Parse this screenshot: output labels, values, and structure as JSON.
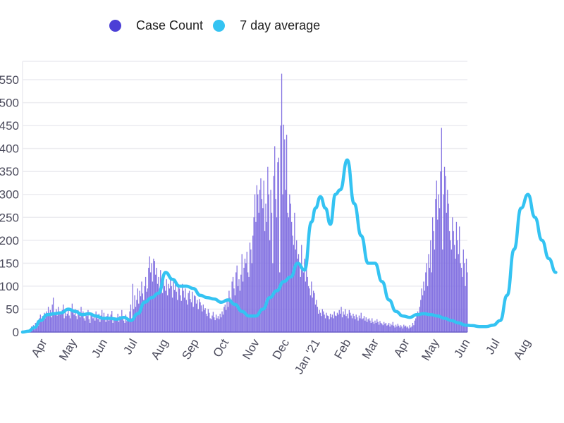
{
  "legend": {
    "items": [
      {
        "label": "Case Count",
        "color": "#4b3fd6"
      },
      {
        "label": "7 day average",
        "color": "#34c3f2"
      }
    ]
  },
  "colors": {
    "bar": "#7b68e0",
    "line": "#34c3f2",
    "grid": "#ececf0",
    "axis_text": "#4b4b5c"
  },
  "chart_data": {
    "type": "bar",
    "title": "",
    "xlabel": "",
    "ylabel": "",
    "ylim": [
      0,
      590
    ],
    "yticks": [
      0,
      50,
      100,
      150,
      200,
      250,
      300,
      350,
      400,
      450,
      500,
      550
    ],
    "grid": true,
    "legend_position": "top",
    "start_date": "2020-03-10",
    "x_tick_labels": [
      "Apr",
      "May",
      "Jun",
      "Jul",
      "Aug",
      "Sep",
      "Oct",
      "Nov",
      "Dec",
      "Jan '21",
      "Feb",
      "Mar",
      "Apr",
      "May",
      "Jun",
      "Jul",
      "Aug"
    ],
    "x_tick_days": [
      22,
      52,
      83,
      113,
      144,
      175,
      205,
      236,
      266,
      297,
      328,
      356,
      387,
      417,
      448,
      478,
      509
    ],
    "series": [
      {
        "name": "7 day average",
        "type": "line",
        "points_day": [
          0,
          6,
          12,
          18,
          25,
          32,
          39,
          46,
          53,
          60,
          67,
          74,
          81,
          88,
          95,
          102,
          109,
          116,
          123,
          130,
          137,
          144,
          151,
          158,
          165,
          172,
          179,
          186,
          193,
          200,
          207,
          214,
          221,
          228,
          235,
          242,
          249,
          256,
          263,
          270,
          277,
          284,
          291,
          295,
          300,
          305,
          310,
          315,
          320,
          327,
          334,
          341,
          348,
          355,
          362,
          369,
          376,
          383,
          390,
          397,
          404,
          411,
          418,
          425,
          432,
          439,
          446,
          453,
          460,
          467,
          474,
          481,
          488,
          495,
          502,
          509,
          516,
          523,
          530,
          537
        ],
        "values": [
          0,
          2,
          10,
          25,
          38,
          40,
          42,
          50,
          45,
          38,
          40,
          35,
          30,
          30,
          28,
          32,
          25,
          40,
          65,
          75,
          85,
          130,
          115,
          100,
          100,
          95,
          80,
          75,
          72,
          65,
          70,
          60,
          45,
          35,
          35,
          50,
          75,
          90,
          110,
          120,
          150,
          135,
          240,
          270,
          295,
          270,
          235,
          300,
          310,
          375,
          280,
          210,
          150,
          150,
          110,
          70,
          45,
          35,
          32,
          38,
          40,
          38,
          35,
          30,
          25,
          20,
          15,
          14,
          12,
          12,
          15,
          25,
          80,
          180,
          270,
          300,
          250,
          200,
          160,
          130
        ]
      },
      {
        "name": "Case Count",
        "type": "bar",
        "peaks_note": "daily values; max ~563 in early Jan '21, ~445 in early Aug '21",
        "values": [
          0,
          0,
          1,
          3,
          0,
          2,
          5,
          4,
          8,
          12,
          10,
          15,
          6,
          20,
          18,
          25,
          14,
          30,
          38,
          22,
          35,
          28,
          42,
          30,
          45,
          40,
          55,
          36,
          48,
          32,
          60,
          75,
          38,
          42,
          50,
          36,
          55,
          44,
          38,
          40,
          48,
          60,
          30,
          45,
          35,
          40,
          52,
          36,
          30,
          45,
          62,
          42,
          38,
          50,
          35,
          28,
          48,
          40,
          32,
          55,
          38,
          45,
          30,
          25,
          40,
          35,
          48,
          28,
          20,
          38,
          42,
          30,
          35,
          25,
          45,
          32,
          28,
          40,
          22,
          36,
          48,
          30,
          42,
          28,
          22,
          35,
          40,
          25,
          30,
          38,
          46,
          20,
          28,
          32,
          25,
          30,
          40,
          22,
          35,
          28,
          48,
          30,
          25,
          20,
          38,
          24,
          30,
          28,
          45,
          60,
          30,
          105,
          50,
          80,
          55,
          70,
          95,
          62,
          90,
          78,
          110,
          84,
          70,
          100,
          120,
          88,
          95,
          140,
          165,
          130,
          150,
          110,
          160,
          155,
          125,
          140,
          105,
          120,
          95,
          135,
          110,
          85,
          120,
          100,
          90,
          115,
          80,
          105,
          95,
          120,
          100,
          75,
          110,
          92,
          115,
          88,
          70,
          100,
          95,
          80,
          68,
          105,
          90,
          75,
          95,
          70,
          60,
          85,
          90,
          72,
          65,
          88,
          55,
          80,
          78,
          62,
          70,
          50,
          72,
          65,
          58,
          45,
          60,
          48,
          52,
          40,
          35,
          50,
          42,
          30,
          28,
          36,
          44,
          32,
          26,
          38,
          30,
          35,
          28,
          40,
          32,
          45,
          38,
          55,
          60,
          48,
          70,
          55,
          90,
          75,
          65,
          110,
          120,
          95,
          80,
          130,
          145,
          100,
          115,
          90,
          125,
          170,
          110,
          140,
          160,
          150,
          175,
          130,
          120,
          195,
          180,
          150,
          210,
          250,
          300,
          240,
          320,
          300,
          260,
          310,
          335,
          290,
          270,
          330,
          220,
          280,
          240,
          360,
          300,
          200,
          310,
          260,
          150,
          340,
          405,
          290,
          250,
          370,
          380,
          130,
          450,
          563,
          300,
          452,
          420,
          310,
          430,
          260,
          250,
          300,
          280,
          240,
          210,
          190,
          260,
          180,
          200,
          160,
          170,
          150,
          120,
          190,
          140,
          130,
          160,
          110,
          150,
          120,
          100,
          95,
          80,
          110,
          75,
          90,
          85,
          60,
          70,
          55,
          40,
          48,
          42,
          35,
          50,
          45,
          38,
          30,
          42,
          36,
          35,
          28,
          40,
          32,
          38,
          30,
          45,
          36,
          35,
          42,
          38,
          48,
          40,
          55,
          32,
          45,
          38,
          50,
          35,
          40,
          30,
          48,
          42,
          36,
          30,
          40,
          35,
          28,
          38,
          32,
          25,
          36,
          30,
          42,
          28,
          30,
          35,
          25,
          32,
          22,
          28,
          30,
          25,
          20,
          30,
          22,
          18,
          25,
          20,
          28,
          22,
          16,
          24,
          20,
          18,
          15,
          22,
          18,
          20,
          14,
          16,
          20,
          12,
          18,
          15,
          22,
          14,
          10,
          16,
          12,
          18,
          14,
          10,
          15,
          12,
          8,
          16,
          12,
          14,
          10,
          12,
          8,
          15,
          10,
          12,
          20,
          15,
          25,
          30,
          35,
          45,
          40,
          55,
          70,
          95,
          80,
          110,
          90,
          130,
          150,
          100,
          170,
          140,
          200,
          130,
          250,
          220,
          180,
          290,
          330,
          245,
          300,
          270,
          350,
          445,
          180,
          300,
          360,
          340,
          260,
          310,
          280,
          220,
          200,
          180,
          250,
          220,
          190,
          160,
          240,
          200,
          170,
          230,
          150,
          140,
          120,
          180,
          150,
          100,
          160,
          130
        ]
      }
    ]
  }
}
